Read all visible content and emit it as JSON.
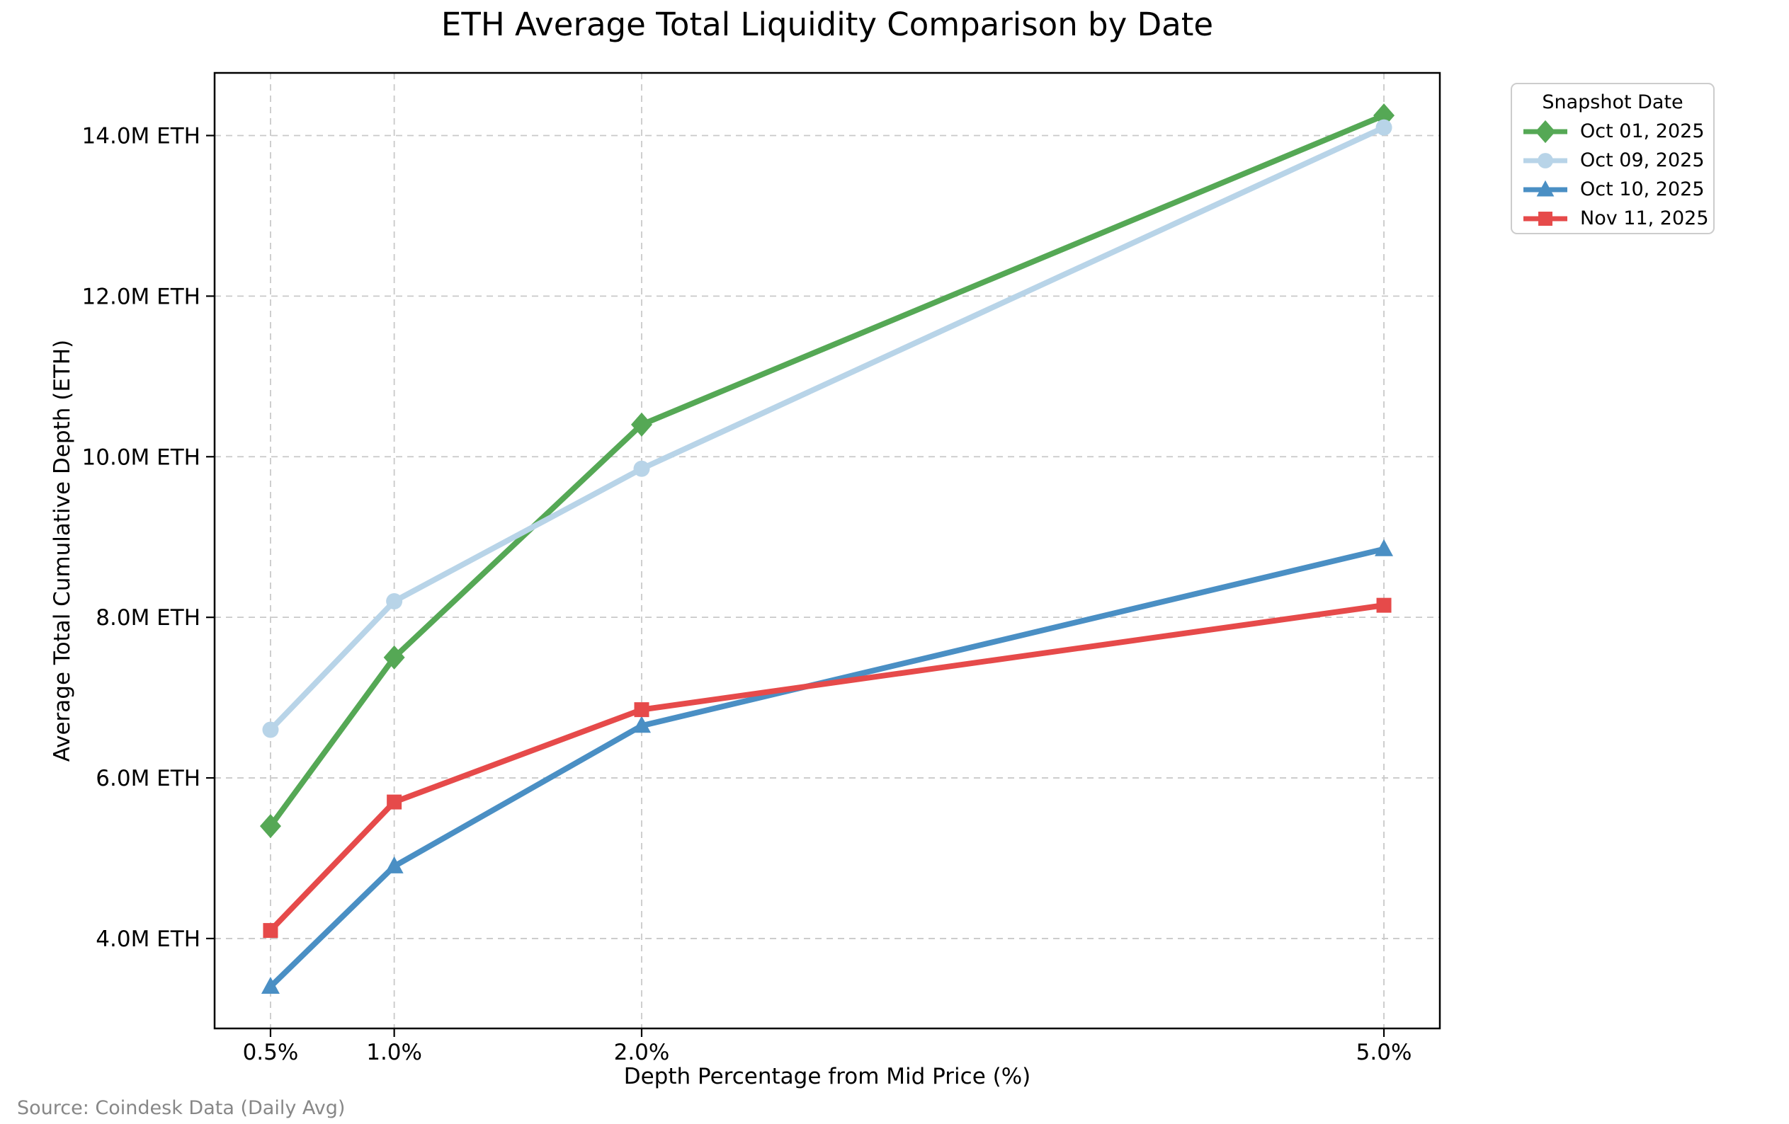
{
  "figure": {
    "title": "ETH Average Total Liquidity Comparison by Date",
    "source_note": "Source: Coindesk Data (Daily Avg)"
  },
  "legend": {
    "title": "Snapshot Date",
    "position": "outside upper right"
  },
  "chart_data": {
    "type": "line",
    "title": "ETH Average Total Liquidity Comparison by Date",
    "xlabel": "Depth Percentage from Mid Price (%)",
    "ylabel": "Average Total Cumulative Depth (ETH)",
    "unit": "M ETH",
    "x": [
      0.5,
      1.0,
      2.0,
      5.0
    ],
    "x_tick_labels": [
      "0.5%",
      "1.0%",
      "2.0%",
      "5.0%"
    ],
    "y_ticks": [
      4,
      6,
      8,
      10,
      12,
      14
    ],
    "y_tick_labels": [
      "4.0M ETH",
      "6.0M ETH",
      "8.0M ETH",
      "10.0M ETH",
      "12.0M ETH",
      "14.0M ETH"
    ],
    "xlim": [
      0.274,
      5.226
    ],
    "ylim": [
      2.88,
      14.78
    ],
    "grid": true,
    "gridline_color": "#c9c9c9",
    "series": [
      {
        "name": "Oct 01, 2025",
        "marker": "diamond",
        "color": "#55a855",
        "values": [
          5.4,
          7.5,
          10.4,
          14.25
        ]
      },
      {
        "name": "Oct 09, 2025",
        "marker": "circle",
        "color": "#b8d4e8",
        "values": [
          6.6,
          8.2,
          9.85,
          14.1
        ]
      },
      {
        "name": "Oct 10, 2025",
        "marker": "triangle",
        "color": "#4a8fc4",
        "values": [
          3.4,
          4.9,
          6.65,
          8.85
        ]
      },
      {
        "name": "Nov 11, 2025",
        "marker": "square",
        "color": "#e64a4a",
        "values": [
          4.1,
          5.7,
          6.85,
          8.15
        ]
      }
    ]
  }
}
